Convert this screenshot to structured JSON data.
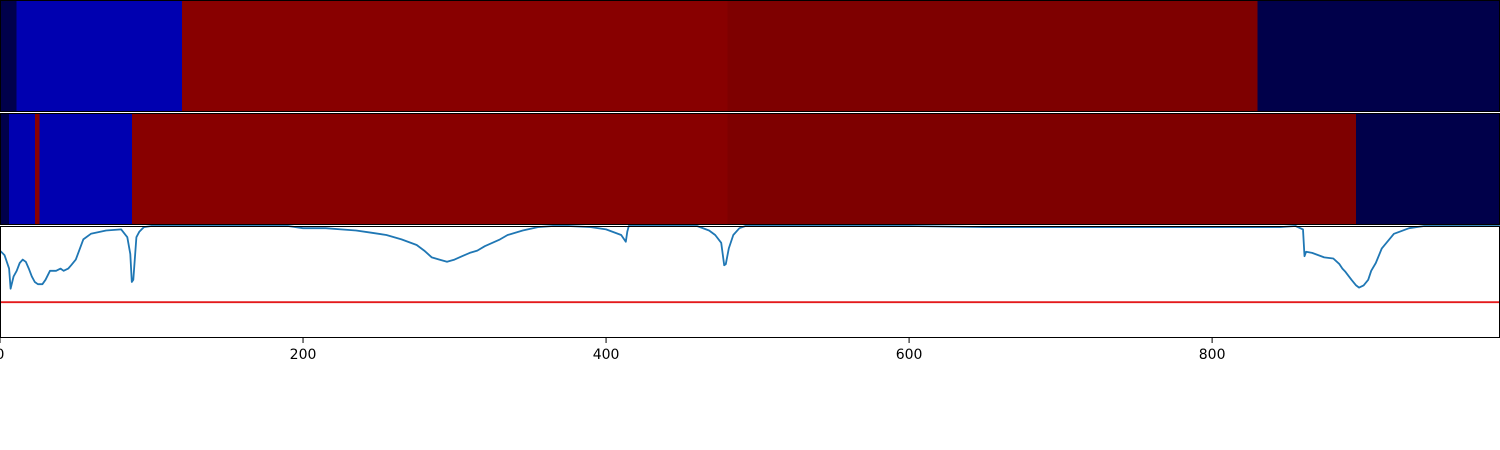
{
  "chart_data": [
    {
      "type": "heatmap",
      "panel": "top",
      "segments": [
        {
          "start": 0,
          "end": 11,
          "color": "#00004A"
        },
        {
          "start": 11,
          "end": 120,
          "color": "#0000B0"
        },
        {
          "start": 120,
          "end": 480,
          "color": "#880000"
        },
        {
          "start": 480,
          "end": 830,
          "color": "#7E0000"
        },
        {
          "start": 830,
          "end": 990,
          "color": "#00004A"
        }
      ]
    },
    {
      "type": "heatmap",
      "panel": "middle",
      "segments": [
        {
          "start": 0,
          "end": 6,
          "color": "#00004A"
        },
        {
          "start": 6,
          "end": 23,
          "color": "#0000B0"
        },
        {
          "start": 23,
          "end": 26,
          "color": "#880000"
        },
        {
          "start": 26,
          "end": 87,
          "color": "#0000B0"
        },
        {
          "start": 87,
          "end": 480,
          "color": "#880000"
        },
        {
          "start": 480,
          "end": 895,
          "color": "#7E0000"
        },
        {
          "start": 895,
          "end": 990,
          "color": "#00004A"
        }
      ]
    },
    {
      "type": "line",
      "panel": "bottom",
      "xlim": [
        0,
        990
      ],
      "ylim": [
        0,
        1
      ],
      "xticks": [
        0,
        200,
        400,
        600,
        800
      ],
      "xtick_labels": [
        "0",
        "200",
        "400",
        "600",
        "800"
      ],
      "series": [
        {
          "color": "#1F77B4",
          "x": [
            0,
            3,
            6,
            7,
            9,
            11,
            13,
            15,
            17,
            19,
            21,
            23,
            25,
            28,
            30,
            33,
            37,
            40,
            42,
            45,
            47,
            50,
            55,
            60,
            70,
            80,
            84,
            86,
            87,
            88,
            90,
            92,
            95,
            100,
            110,
            120,
            130,
            150,
            170,
            190,
            200,
            215,
            225,
            235,
            245,
            255,
            265,
            275,
            280,
            285,
            290,
            295,
            300,
            305,
            310,
            315,
            320,
            325,
            330,
            335,
            345,
            355,
            365,
            375,
            390,
            400,
            410,
            413,
            414,
            415,
            420,
            430,
            440,
            450,
            460,
            468,
            472,
            476,
            478,
            479,
            481,
            484,
            488,
            492,
            500,
            510,
            530,
            560,
            600,
            650,
            700,
            750,
            800,
            830,
            845,
            855,
            860,
            861,
            862,
            866,
            870,
            874,
            880,
            884,
            886,
            888,
            892,
            895,
            897,
            900,
            903,
            905,
            908,
            912,
            920,
            930,
            940,
            950,
            960,
            970,
            990
          ],
          "y": [
            0.78,
            0.74,
            0.62,
            0.44,
            0.55,
            0.6,
            0.67,
            0.7,
            0.68,
            0.62,
            0.55,
            0.5,
            0.48,
            0.48,
            0.52,
            0.6,
            0.6,
            0.62,
            0.6,
            0.62,
            0.65,
            0.7,
            0.88,
            0.93,
            0.96,
            0.97,
            0.9,
            0.75,
            0.5,
            0.52,
            0.9,
            0.95,
            0.99,
            1.0,
            1.0,
            1.0,
            1.0,
            1.0,
            1.0,
            1.0,
            0.98,
            0.98,
            0.97,
            0.96,
            0.94,
            0.92,
            0.88,
            0.83,
            0.78,
            0.72,
            0.7,
            0.68,
            0.7,
            0.73,
            0.76,
            0.78,
            0.82,
            0.85,
            0.88,
            0.92,
            0.96,
            0.99,
            1.0,
            1.0,
            0.99,
            0.97,
            0.92,
            0.86,
            0.95,
            1.0,
            1.0,
            1.0,
            1.0,
            1.0,
            1.0,
            0.96,
            0.92,
            0.85,
            0.65,
            0.66,
            0.8,
            0.92,
            0.98,
            1.0,
            1.0,
            1.0,
            1.0,
            1.0,
            1.0,
            0.99,
            0.99,
            0.99,
            0.99,
            0.99,
            0.99,
            1.0,
            0.97,
            0.73,
            0.77,
            0.76,
            0.74,
            0.72,
            0.71,
            0.66,
            0.62,
            0.59,
            0.52,
            0.47,
            0.45,
            0.47,
            0.52,
            0.6,
            0.67,
            0.8,
            0.93,
            0.98,
            1.0,
            1.0,
            1.0,
            1.0,
            1.0
          ]
        },
        {
          "color": "#E41A1C",
          "x": [
            0,
            990
          ],
          "y": [
            0.32,
            0.32
          ]
        }
      ]
    }
  ]
}
